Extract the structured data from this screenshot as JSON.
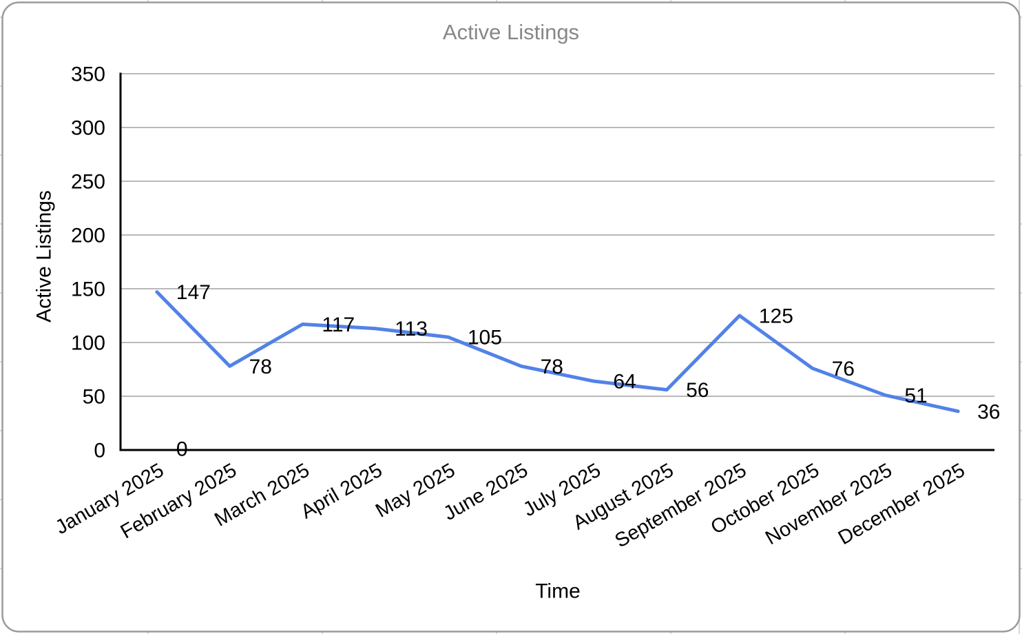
{
  "chart_data": {
    "type": "line",
    "title": "Active Listings",
    "xlabel": "Time",
    "ylabel": "Active Listings",
    "categories": [
      "January 2025",
      "February 2025",
      "March 2025",
      "April 2025",
      "May 2025",
      "June 2025",
      "July 2025",
      "August 2025",
      "September 2025",
      "October 2025",
      "November 2025",
      "December 2025"
    ],
    "series": [
      {
        "name": "Active Listings",
        "values": [
          147,
          78,
          117,
          113,
          105,
          78,
          64,
          56,
          125,
          76,
          51,
          36
        ]
      }
    ],
    "annotations": [
      {
        "text": "0",
        "category_index": 0,
        "value": 0
      }
    ],
    "data_labels": true,
    "ylim": [
      0,
      350
    ],
    "yticks": [
      0,
      50,
      100,
      150,
      200,
      250,
      300,
      350
    ],
    "grid": true,
    "legend": "none",
    "colors": {
      "line": "#5282e8",
      "data_label": "#000000",
      "tick_label": "#000000",
      "title": "#878787",
      "axis_title": "#000000",
      "axis_line": "#000000",
      "gridline": "#b9b9b9",
      "card_border": "#9a9a9a",
      "card_fill": "#ffffff",
      "sheet_gridline": "#d8d8d8"
    }
  }
}
